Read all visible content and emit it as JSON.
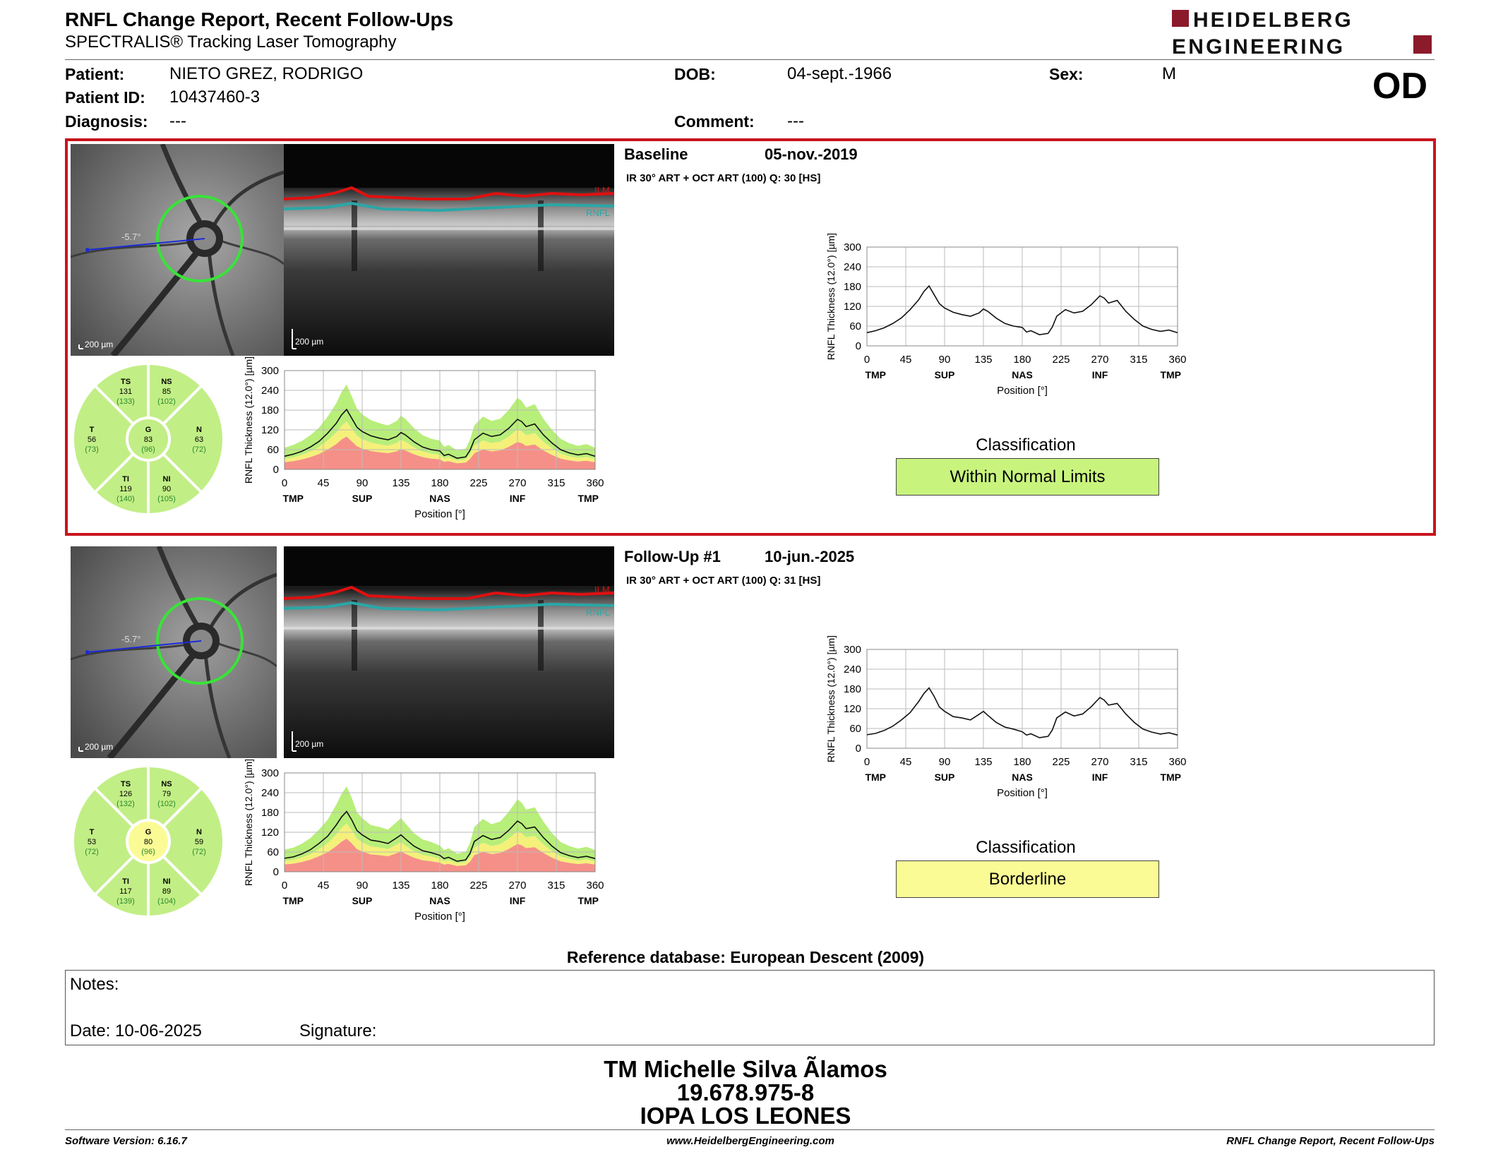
{
  "header": {
    "title": "RNFL Change Report, Recent Follow-Ups",
    "subtitle": "SPECTRALIS® Tracking Laser Tomography",
    "logo_text_1": "HEIDELBERG",
    "logo_text_2": "ENGINEERING",
    "brand_color": "#8b1a2b"
  },
  "patient": {
    "patient_label": "Patient:",
    "patient_name": "NIETO GREZ, RODRIGO",
    "id_label": "Patient ID:",
    "patient_id": "10437460-3",
    "diagnosis_label": "Diagnosis:",
    "diagnosis": "---",
    "dob_label": "DOB:",
    "dob": "04-sept.-1966",
    "comment_label": "Comment:",
    "comment": "---",
    "sex_label": "Sex:",
    "sex": "M",
    "eye": "OD"
  },
  "exams": [
    {
      "label": "Baseline",
      "date": "05-nov.-2019",
      "scan_info": "IR 30° ART + OCT ART (100) Q: 30 [HS]",
      "angle": "-5.7°",
      "scale_fundus": "200 µm",
      "scale_bscan": "200 µm",
      "layer_ilm": "ILM",
      "layer_rnfl": "RNFL",
      "classification_title": "Classification",
      "classification": "Within Normal Limits",
      "classification_color": "#c8f47e",
      "sectors": {
        "TS": {
          "value": "131",
          "normal": "(133)"
        },
        "NS": {
          "value": "85",
          "normal": "(102)"
        },
        "T": {
          "value": "56",
          "normal": "(73)"
        },
        "G": {
          "value": "83",
          "normal": "(96)"
        },
        "N": {
          "value": "63",
          "normal": "(72)"
        },
        "TI": {
          "value": "119",
          "normal": "(140)"
        },
        "NI": {
          "value": "90",
          "normal": "(105)"
        }
      }
    },
    {
      "label": "Follow-Up #1",
      "date": "10-jun.-2025",
      "scan_info": "IR 30° ART + OCT ART (100) Q: 31 [HS]",
      "angle": "-5.7°",
      "scale_fundus": "200 µm",
      "scale_bscan": "200 µm",
      "layer_ilm": "ILM",
      "layer_rnfl": "RNFL",
      "classification_title": "Classification",
      "classification": "Borderline",
      "classification_color": "#fbfb96",
      "sectors": {
        "TS": {
          "value": "126",
          "normal": "(132)"
        },
        "NS": {
          "value": "79",
          "normal": "(102)"
        },
        "T": {
          "value": "53",
          "normal": "(72)"
        },
        "G": {
          "value": "80",
          "normal": "(96)"
        },
        "N": {
          "value": "59",
          "normal": "(72)"
        },
        "TI": {
          "value": "117",
          "normal": "(139)"
        },
        "NI": {
          "value": "89",
          "normal": "(104)"
        }
      }
    }
  ],
  "chart_data": [
    {
      "type": "line",
      "title": "",
      "ylabel": "RNFL Thickness (12.0°) [µm]",
      "xlabel": "Position [°]",
      "x_ticks": [
        0,
        45,
        90,
        135,
        180,
        225,
        270,
        315,
        360
      ],
      "y_ticks": [
        0,
        60,
        120,
        180,
        240,
        300
      ],
      "x_region_labels": [
        "TMP",
        "SUP",
        "NAS",
        "INF",
        "TMP"
      ],
      "xlim": [
        0,
        360
      ],
      "ylim": [
        0,
        300
      ],
      "series": [
        {
          "x": [
            0,
            10,
            20,
            30,
            40,
            50,
            60,
            66,
            72,
            78,
            84,
            90,
            100,
            110,
            120,
            130,
            135,
            140,
            150,
            160,
            170,
            180,
            185,
            190,
            200,
            210,
            215,
            220,
            230,
            240,
            250,
            260,
            270,
            275,
            280,
            290,
            300,
            310,
            320,
            330,
            340,
            350,
            360
          ],
          "values": [
            40,
            46,
            55,
            68,
            85,
            110,
            140,
            165,
            182,
            155,
            128,
            115,
            102,
            95,
            90,
            100,
            112,
            105,
            84,
            68,
            60,
            56,
            42,
            46,
            34,
            38,
            58,
            90,
            110,
            100,
            105,
            125,
            152,
            145,
            130,
            138,
            105,
            80,
            60,
            50,
            44,
            48,
            40
          ]
        }
      ]
    },
    {
      "type": "line",
      "title": "",
      "ylabel": "RNFL Thickness (12.0°) [µm]",
      "xlabel": "Position [°]",
      "x_ticks": [
        0,
        45,
        90,
        135,
        180,
        225,
        270,
        315,
        360
      ],
      "y_ticks": [
        0,
        60,
        120,
        180,
        240,
        300
      ],
      "x_region_labels": [
        "TMP",
        "SUP",
        "NAS",
        "INF",
        "TMP"
      ],
      "xlim": [
        0,
        360
      ],
      "ylim": [
        0,
        300
      ],
      "series": [
        {
          "x": [
            0,
            10,
            20,
            30,
            40,
            50,
            60,
            66,
            72,
            78,
            84,
            90,
            100,
            110,
            120,
            130,
            135,
            140,
            150,
            160,
            170,
            180,
            185,
            190,
            200,
            210,
            215,
            220,
            230,
            240,
            250,
            260,
            270,
            275,
            280,
            290,
            300,
            310,
            320,
            330,
            340,
            350,
            360
          ],
          "values": [
            41,
            45,
            54,
            67,
            86,
            108,
            142,
            166,
            183,
            157,
            125,
            112,
            96,
            92,
            86,
            103,
            112,
            100,
            78,
            64,
            58,
            50,
            40,
            44,
            32,
            36,
            56,
            92,
            110,
            98,
            104,
            126,
            154,
            146,
            131,
            136,
            104,
            78,
            58,
            49,
            43,
            47,
            40
          ]
        }
      ]
    },
    {
      "type": "line",
      "title": "",
      "ylabel": "RNFL Thickness (12.0°) [µm]",
      "xlabel": "Position [°]",
      "x_ticks": [
        0,
        45,
        90,
        135,
        180,
        225,
        270,
        315,
        360
      ],
      "y_ticks": [
        0,
        60,
        120,
        180,
        240,
        300
      ],
      "x_region_labels": [
        "TMP",
        "SUP",
        "NAS",
        "INF",
        "TMP"
      ],
      "xlim": [
        0,
        360
      ],
      "ylim": [
        0,
        300
      ],
      "normative_bands": {
        "colors": [
          "#f59088",
          "#f5f07a",
          "#b8ee7a"
        ]
      },
      "series": [
        {
          "x": [
            0,
            10,
            20,
            30,
            40,
            50,
            60,
            66,
            72,
            78,
            84,
            90,
            100,
            110,
            120,
            130,
            135,
            140,
            150,
            160,
            170,
            180,
            185,
            190,
            200,
            210,
            215,
            220,
            230,
            240,
            250,
            260,
            270,
            275,
            280,
            290,
            300,
            310,
            320,
            330,
            340,
            350,
            360
          ],
          "values": [
            40,
            46,
            55,
            68,
            85,
            110,
            140,
            165,
            182,
            155,
            128,
            115,
            102,
            95,
            90,
            100,
            112,
            105,
            84,
            68,
            60,
            56,
            42,
            46,
            34,
            38,
            58,
            90,
            110,
            100,
            105,
            125,
            152,
            145,
            130,
            138,
            105,
            80,
            60,
            50,
            44,
            48,
            40
          ]
        }
      ]
    },
    {
      "type": "line",
      "title": "",
      "ylabel": "RNFL Thickness (12.0°) [µm]",
      "xlabel": "Position [°]",
      "x_ticks": [
        0,
        45,
        90,
        135,
        180,
        225,
        270,
        315,
        360
      ],
      "y_ticks": [
        0,
        60,
        120,
        180,
        240,
        300
      ],
      "x_region_labels": [
        "TMP",
        "SUP",
        "NAS",
        "INF",
        "TMP"
      ],
      "xlim": [
        0,
        360
      ],
      "ylim": [
        0,
        300
      ],
      "normative_bands": {
        "colors": [
          "#f59088",
          "#f5f07a",
          "#b8ee7a"
        ]
      },
      "series": [
        {
          "x": [
            0,
            10,
            20,
            30,
            40,
            50,
            60,
            66,
            72,
            78,
            84,
            90,
            100,
            110,
            120,
            130,
            135,
            140,
            150,
            160,
            170,
            180,
            185,
            190,
            200,
            210,
            215,
            220,
            230,
            240,
            250,
            260,
            270,
            275,
            280,
            290,
            300,
            310,
            320,
            330,
            340,
            350,
            360
          ],
          "values": [
            41,
            45,
            54,
            67,
            86,
            108,
            142,
            166,
            183,
            157,
            125,
            112,
            96,
            92,
            86,
            103,
            112,
            100,
            78,
            64,
            58,
            50,
            40,
            44,
            32,
            36,
            56,
            92,
            110,
            98,
            104,
            126,
            154,
            146,
            131,
            136,
            104,
            78,
            58,
            49,
            43,
            47,
            40
          ]
        }
      ]
    }
  ],
  "ref_db": "Reference database: European Descent (2009)",
  "notes": {
    "notes_label": "Notes:",
    "date_label": "Date: 10-06-2025",
    "signature_label": "Signature:"
  },
  "signature_block": {
    "line1": "TM Michelle Silva Ãlamos",
    "line2": "19.678.975-8",
    "line3": "IOPA LOS LEONES"
  },
  "footer": {
    "software": "Software Version: 6.16.7",
    "website": "www.HeidelbergEngineering.com",
    "report_name": "RNFL Change Report, Recent Follow-Ups"
  }
}
